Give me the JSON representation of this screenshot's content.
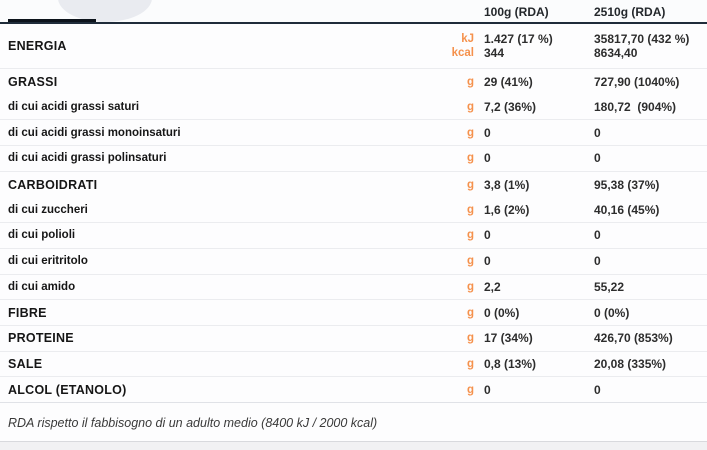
{
  "colors": {
    "accent_orange": "#f5914c",
    "header_line": "#1f2c3a"
  },
  "header": {
    "col_100g": "100g (RDA)",
    "col_2510g": "2510g (RDA)"
  },
  "energia": {
    "label": "ENERGIA",
    "lines": [
      {
        "unit": "kJ",
        "v100": "1.427 (17 %)",
        "v2510": "35817,70 (432 %)"
      },
      {
        "unit": "kcal",
        "v100": "344",
        "v2510": "8634,40"
      }
    ]
  },
  "rows": [
    {
      "label": "GRASSI",
      "style": "group",
      "unit": "g",
      "v100": "29 (41%)",
      "v2510": "727,90 (1040%)",
      "divider": false
    },
    {
      "label": "di cui acidi grassi saturi",
      "style": "sub",
      "unit": "g",
      "v100": "7,2 (36%)",
      "v2510": "180,72  (904%)",
      "divider": true
    },
    {
      "label": "di cui acidi grassi monoinsaturi",
      "style": "sub",
      "unit": "g",
      "v100": "0",
      "v2510": "0",
      "divider": true
    },
    {
      "label": "di cui acidi grassi polinsaturi",
      "style": "sub",
      "unit": "g",
      "v100": "0",
      "v2510": "0",
      "divider": true
    },
    {
      "label": "CARBOIDRATI",
      "style": "group",
      "unit": "g",
      "v100": "3,8 (1%)",
      "v2510": "95,38 (37%)",
      "divider": false
    },
    {
      "label": "di cui zuccheri",
      "style": "sub",
      "unit": "g",
      "v100": "1,6 (2%)",
      "v2510": "40,16 (45%)",
      "divider": true
    },
    {
      "label": "di cui polioli",
      "style": "sub",
      "unit": "g",
      "v100": "0",
      "v2510": "0",
      "divider": true
    },
    {
      "label": "di cui eritritolo",
      "style": "sub",
      "unit": "g",
      "v100": "0",
      "v2510": "0",
      "divider": true
    },
    {
      "label": "di cui amido",
      "style": "sub",
      "unit": "g",
      "v100": "2,2",
      "v2510": "55,22",
      "divider": true
    },
    {
      "label": "FIBRE",
      "style": "group",
      "unit": "g",
      "v100": "0 (0%)",
      "v2510": "0 (0%)",
      "divider": true
    },
    {
      "label": "PROTEINE",
      "style": "group",
      "unit": "g",
      "v100": "17 (34%)",
      "v2510": "426,70 (853%)",
      "divider": true
    },
    {
      "label": "SALE",
      "style": "group",
      "unit": "g",
      "v100": "0,8 (13%)",
      "v2510": "20,08 (335%)",
      "divider": true
    },
    {
      "label": "ALCOL (ETANOLO)",
      "style": "group",
      "unit": "g",
      "v100": "0",
      "v2510": "0",
      "divider": true
    }
  ],
  "footer": {
    "note": "RDA rispetto il fabbisogno di un adulto medio (8400 kJ / 2000 kcal)"
  }
}
